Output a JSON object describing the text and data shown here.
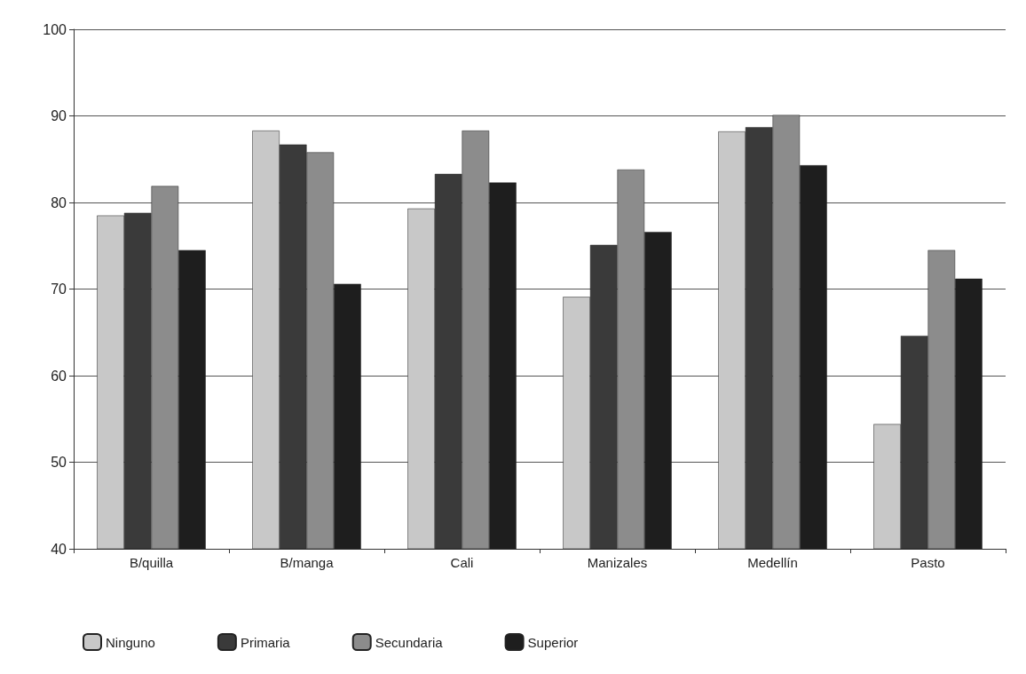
{
  "chart_data": {
    "type": "bar",
    "categories": [
      "B/quilla",
      "B/manga",
      "Cali",
      "Manizales",
      "Medellín",
      "Pasto"
    ],
    "series": [
      {
        "name": "Ninguno",
        "color": "#c8c8c8",
        "values": [
          78.5,
          88.3,
          79.3,
          69.1,
          88.2,
          54.4
        ]
      },
      {
        "name": "Primaria",
        "color": "#3a3a3a",
        "values": [
          78.8,
          86.7,
          83.3,
          75.1,
          88.7,
          64.6
        ]
      },
      {
        "name": "Secundaria",
        "color": "#8c8c8c",
        "values": [
          81.9,
          85.8,
          88.3,
          83.8,
          90.1,
          74.5
        ]
      },
      {
        "name": "Superior",
        "color": "#1e1e1e",
        "values": [
          74.5,
          70.6,
          82.3,
          76.6,
          84.3,
          71.2
        ]
      }
    ],
    "ylim": [
      40,
      100
    ],
    "yticks": [
      40,
      50,
      60,
      70,
      80,
      90,
      100
    ],
    "grid": "y",
    "legend": "bottom left"
  }
}
